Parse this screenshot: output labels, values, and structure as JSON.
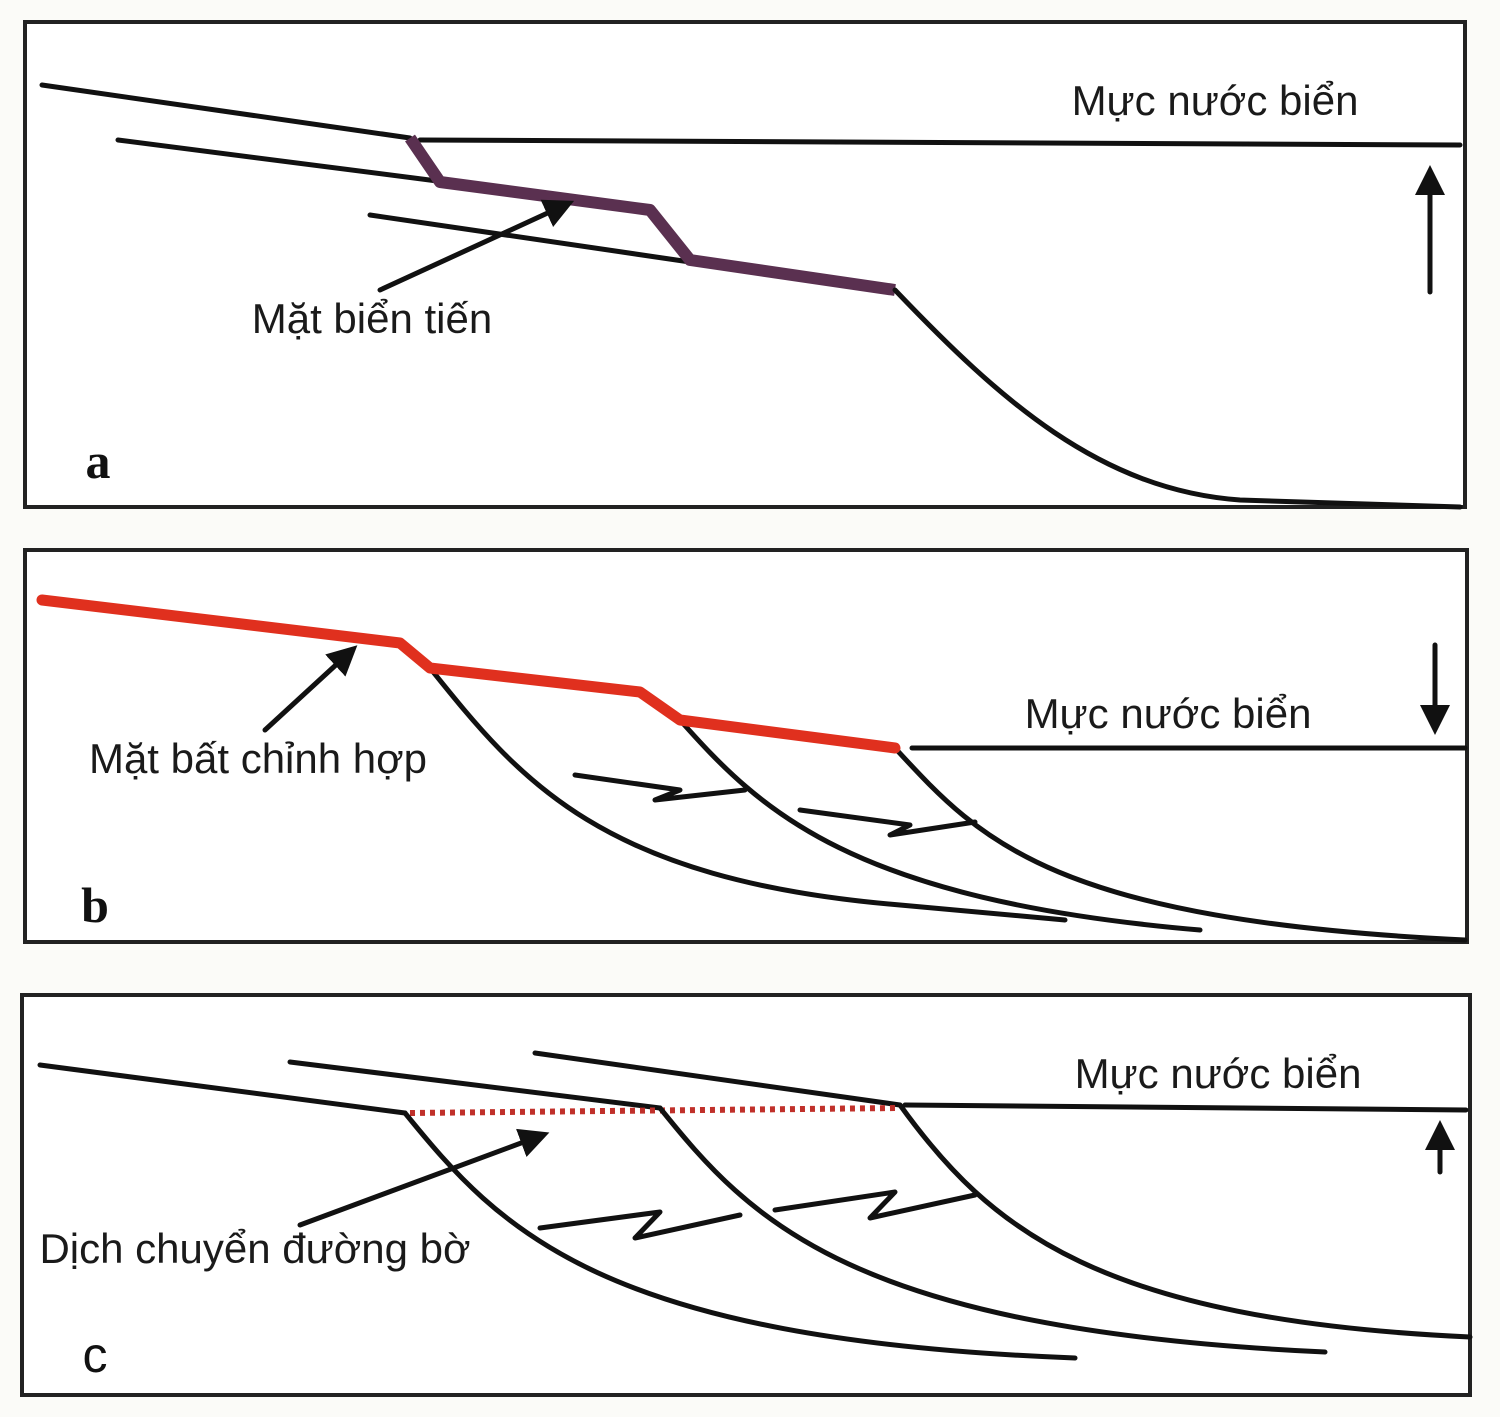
{
  "panels": [
    {
      "letter": "a",
      "sea_level": "Mực nước biển",
      "annotation": "Mặt biển tiến"
    },
    {
      "letter": "b",
      "sea_level": "Mực nước biển",
      "annotation": "Mặt bất chỉnh hợp"
    },
    {
      "letter": "c",
      "sea_level": "Mực nước biển",
      "annotation": "Dịch chuyển đường bờ"
    }
  ]
}
